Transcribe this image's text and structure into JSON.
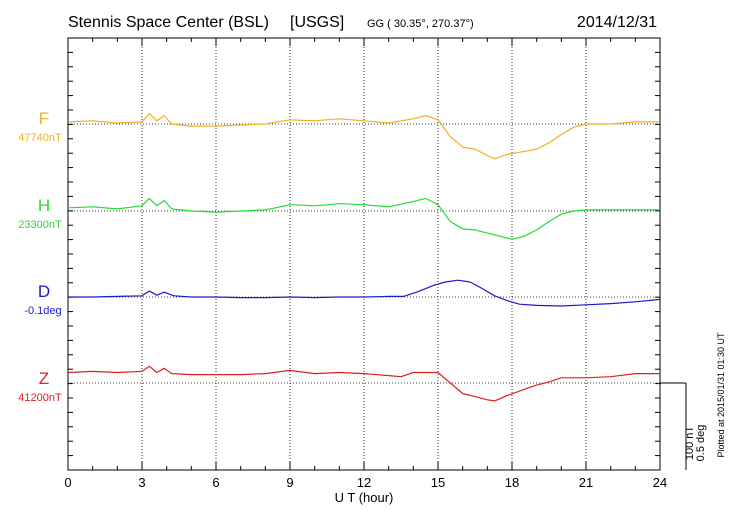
{
  "header": {
    "station": "Stennis Space Center (BSL)",
    "agency": "[USGS]",
    "coords": "GG ( 30.35°, 270.37°)",
    "date": "2014/12/31"
  },
  "side_note": "Plotted at 2015/01/31 01:30 UT",
  "scale": {
    "line1": "100 nT",
    "line2": "0.5 deg"
  },
  "colors": {
    "F": "#f0b020",
    "H": "#22dd33",
    "D": "#1a1acc",
    "Z": "#dd2020",
    "grid": "#000000"
  },
  "chart_data": {
    "type": "line",
    "xlabel": "U T (hour)",
    "xlim": [
      0,
      24
    ],
    "xticks": [
      "0",
      "3",
      "6",
      "9",
      "12",
      "15",
      "18",
      "21",
      "24"
    ],
    "grid": "dotted, every 3 hours",
    "series": [
      {
        "name": "F",
        "base_label": "47740nT",
        "unit": "nT",
        "x": [
          0,
          1,
          2,
          3,
          3.3,
          3.6,
          3.9,
          4.2,
          5,
          6,
          7,
          8,
          9,
          10,
          11,
          12,
          13,
          14,
          14.5,
          15,
          15.5,
          16,
          16.5,
          17,
          17.3,
          17.8,
          18.3,
          19,
          19.5,
          20,
          20.5,
          21,
          22,
          23,
          24
        ],
        "values": [
          47742,
          47743,
          47741,
          47742,
          47750,
          47743,
          47748,
          47740,
          47738,
          47738,
          47739,
          47740,
          47744,
          47743,
          47745,
          47743,
          47741,
          47745,
          47748,
          47744,
          47728,
          47718,
          47716,
          47710,
          47707,
          47711,
          47713,
          47716,
          47722,
          47730,
          47737,
          47740,
          47740,
          47742,
          47742
        ]
      },
      {
        "name": "H",
        "base_label": "23300nT",
        "unit": "nT",
        "x": [
          0,
          1,
          2,
          3,
          3.3,
          3.6,
          3.9,
          4.2,
          5,
          6,
          7,
          8,
          9,
          10,
          11,
          12,
          13,
          14,
          14.5,
          15,
          15.5,
          16,
          16.5,
          17,
          17.5,
          18,
          18.5,
          19,
          19.5,
          20,
          20.5,
          21,
          22,
          23,
          24
        ],
        "values": [
          23303,
          23304,
          23302,
          23305,
          23312,
          23305,
          23310,
          23302,
          23300,
          23299,
          23300,
          23301,
          23306,
          23305,
          23307,
          23306,
          23304,
          23309,
          23312,
          23306,
          23290,
          23283,
          23282,
          23279,
          23276,
          23273,
          23276,
          23282,
          23290,
          23297,
          23300,
          23301,
          23301,
          23301,
          23301
        ]
      },
      {
        "name": "D",
        "base_label": "-0.1deg",
        "unit": "deg",
        "x": [
          0,
          1,
          2,
          3,
          3.3,
          3.6,
          3.9,
          4.3,
          5,
          6,
          7,
          8,
          9,
          10,
          11,
          12,
          13,
          13.6,
          14.2,
          14.8,
          15.3,
          15.8,
          16.3,
          16.8,
          17.3,
          17.8,
          18.3,
          19,
          20,
          21,
          22,
          23,
          24
        ],
        "values": [
          -0.1,
          -0.1,
          -0.099,
          -0.098,
          -0.09,
          -0.097,
          -0.092,
          -0.098,
          -0.1,
          -0.1,
          -0.101,
          -0.101,
          -0.1,
          -0.101,
          -0.1,
          -0.1,
          -0.099,
          -0.099,
          -0.091,
          -0.081,
          -0.075,
          -0.072,
          -0.075,
          -0.086,
          -0.098,
          -0.106,
          -0.112,
          -0.114,
          -0.115,
          -0.113,
          -0.111,
          -0.108,
          -0.104
        ]
      },
      {
        "name": "Z",
        "base_label": "41200nT",
        "unit": "nT",
        "x": [
          0,
          1,
          2,
          3,
          3.3,
          3.6,
          3.9,
          4.2,
          5,
          6,
          7,
          8,
          9,
          10,
          11,
          12,
          13,
          13.5,
          14,
          15,
          15.5,
          16,
          16.5,
          17,
          17.3,
          17.8,
          18.5,
          19,
          19.5,
          20,
          21,
          22,
          23,
          24
        ],
        "values": [
          41210,
          41211,
          41210,
          41211,
          41216,
          41210,
          41214,
          41209,
          41208,
          41208,
          41208,
          41209,
          41212,
          41209,
          41210,
          41209,
          41207,
          41206,
          41210,
          41210,
          41200,
          41190,
          41187,
          41184,
          41183,
          41188,
          41194,
          41198,
          41201,
          41205,
          41205,
          41206,
          41209,
          41209
        ]
      }
    ]
  }
}
